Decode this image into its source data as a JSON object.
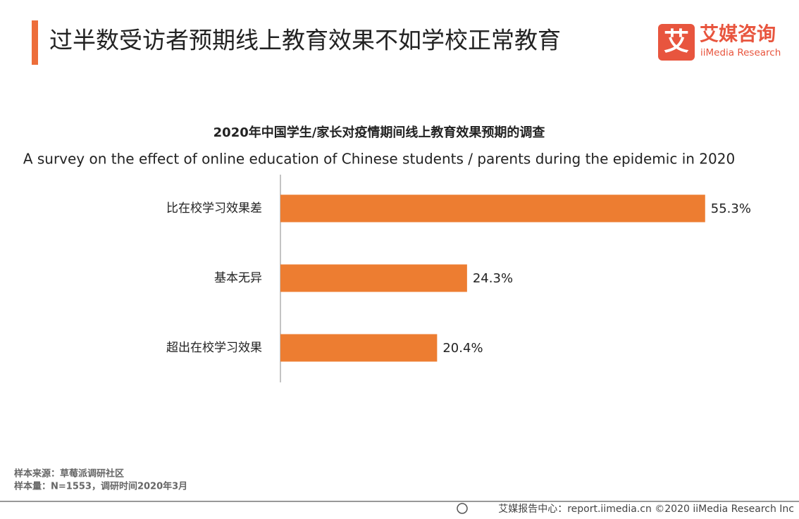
{
  "header": {
    "title": "过半数受访者预期线上教育效果不如学校正常教育",
    "logo_icon": "艾",
    "logo_cn": "艾媒咨询",
    "logo_en": "iiMedia Research"
  },
  "chart_data": {
    "type": "bar",
    "orientation": "horizontal",
    "title": "2020年中国学生/家长对疫情期间线上教育效果预期的调查",
    "subtitle": "A survey on the effect of online education of Chinese students / parents during the epidemic  in 2020",
    "categories": [
      "比在校学习效果差",
      "基本无异",
      "超出在校学习效果"
    ],
    "values": [
      55.3,
      24.3,
      20.4
    ],
    "value_labels": [
      "55.3%",
      "24.3%",
      "20.4%"
    ],
    "color": "#ed7d31"
  },
  "footer": {
    "notes": [
      "样本来源：草莓派调研社区",
      "样本量：N=1553，调研时间2020年3月"
    ],
    "credit": "艾媒报告中心：report.iimedia.cn  ©2020  iiMedia Research Inc"
  }
}
